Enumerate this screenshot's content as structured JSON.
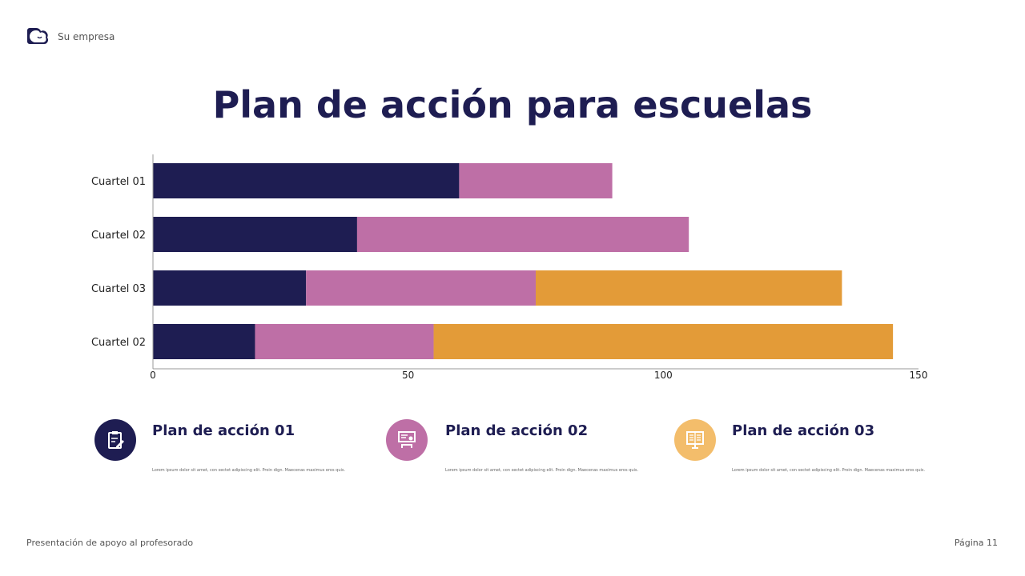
{
  "header": {
    "company": "Su empresa",
    "logo_icon": "cloud-smile-icon"
  },
  "title": "Plan de acción para escuelas",
  "chart_data": {
    "type": "bar",
    "orientation": "horizontal",
    "stacked": true,
    "categories": [
      "Cuartel 01",
      "Cuartel 02",
      "Cuartel 03",
      "Cuartel 02"
    ],
    "series": [
      {
        "values": [
          60,
          40,
          30,
          20
        ],
        "color": "#1e1d52"
      },
      {
        "values": [
          30,
          65,
          45,
          35
        ],
        "color": "#be6fa6"
      },
      {
        "values": [
          0,
          0,
          60,
          90
        ],
        "color": "#e39b38"
      }
    ],
    "xlim": [
      0,
      150
    ],
    "xticks": [
      "0",
      "50",
      "100",
      "150"
    ],
    "grid": false
  },
  "plans": [
    {
      "title": "Plan de acción 01",
      "desc": "Lorem ipsum dolor sit amet, con sectet adipiscing elit. Proin dign. Maecenas maximus eros quis.",
      "color": "#1e1d52",
      "icon": "clipboard-edit-icon"
    },
    {
      "title": "Plan de acción 02",
      "desc": "Lorem ipsum dolor sit amet, con sectet adipiscing elit. Proin dign. Maecenas maximus eros quis.",
      "color": "#be6fa6",
      "icon": "presentation-teacher-icon"
    },
    {
      "title": "Plan de acción 03",
      "desc": "Lorem ipsum dolor sit amet, con sectet adipiscing elit. Proin dign. Maecenas maximus eros quis.",
      "color": "#f3bd6b",
      "icon": "book-screen-icon"
    }
  ],
  "footer": {
    "left": "Presentación de apoyo al profesorado",
    "right": "Página 11"
  }
}
